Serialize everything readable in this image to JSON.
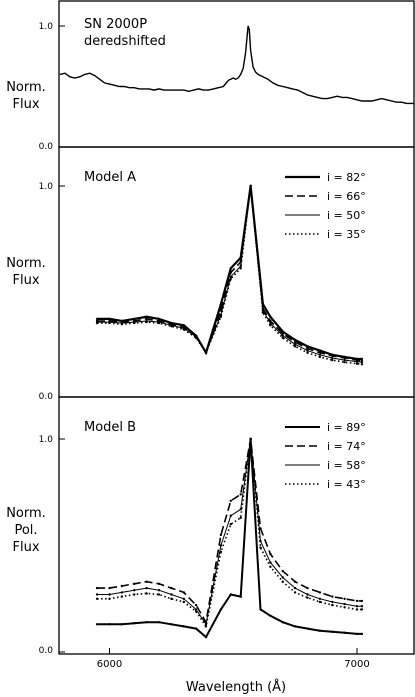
{
  "chart_data": [
    {
      "type": "line",
      "title": "",
      "annotation_lines": [
        "SN 2000P",
        "deredshifted"
      ],
      "xlabel": "",
      "ylabel_lines": [
        "Norm.",
        "Flux"
      ],
      "xlim": [
        5800,
        7230
      ],
      "ylim": [
        0.0,
        1.15
      ],
      "yticks": [
        {
          "value": 0.0,
          "label": "0.0"
        },
        {
          "value": 1.0,
          "label": "1.0"
        }
      ],
      "grid": false,
      "legend": null,
      "series": [
        {
          "style": "solid-thin",
          "x": [
            5800,
            5820,
            5840,
            5860,
            5880,
            5900,
            5920,
            5940,
            5960,
            5980,
            6000,
            6020,
            6040,
            6060,
            6080,
            6100,
            6120,
            6140,
            6160,
            6180,
            6200,
            6220,
            6240,
            6260,
            6280,
            6300,
            6320,
            6340,
            6360,
            6380,
            6400,
            6420,
            6440,
            6460,
            6480,
            6500,
            6510,
            6520,
            6530,
            6540,
            6550,
            6560,
            6565,
            6570,
            6580,
            6590,
            6600,
            6620,
            6640,
            6660,
            6680,
            6700,
            6720,
            6740,
            6760,
            6780,
            6800,
            6820,
            6840,
            6860,
            6880,
            6900,
            6920,
            6940,
            6960,
            6980,
            7000,
            7020,
            7040,
            7060,
            7080,
            7100,
            7120,
            7140,
            7160,
            7180,
            7200,
            7230
          ],
          "y": [
            0.6,
            0.61,
            0.58,
            0.57,
            0.58,
            0.6,
            0.61,
            0.59,
            0.56,
            0.53,
            0.52,
            0.51,
            0.5,
            0.5,
            0.49,
            0.49,
            0.48,
            0.48,
            0.48,
            0.47,
            0.48,
            0.47,
            0.47,
            0.47,
            0.47,
            0.47,
            0.46,
            0.47,
            0.48,
            0.47,
            0.47,
            0.48,
            0.49,
            0.5,
            0.55,
            0.57,
            0.56,
            0.57,
            0.6,
            0.65,
            0.78,
            1.0,
            0.97,
            0.8,
            0.66,
            0.62,
            0.6,
            0.58,
            0.56,
            0.53,
            0.51,
            0.5,
            0.49,
            0.48,
            0.47,
            0.45,
            0.43,
            0.42,
            0.41,
            0.4,
            0.4,
            0.41,
            0.42,
            0.41,
            0.41,
            0.4,
            0.39,
            0.38,
            0.38,
            0.38,
            0.39,
            0.4,
            0.39,
            0.38,
            0.37,
            0.37,
            0.36,
            0.36
          ]
        }
      ]
    },
    {
      "type": "line",
      "title": "",
      "annotation_lines": [
        "Model A"
      ],
      "xlabel": "",
      "ylabel_lines": [
        "Norm.",
        "Flux"
      ],
      "xlim": [
        5800,
        7230
      ],
      "ylim": [
        0.0,
        1.12
      ],
      "yticks": [
        {
          "value": 0.0,
          "label": "0.0"
        },
        {
          "value": 1.0,
          "label": "1.0"
        }
      ],
      "grid": false,
      "legend": "top-right",
      "series": [
        {
          "name": "i = 82°",
          "style": "solid-thick",
          "x": [
            5950,
            6000,
            6050,
            6100,
            6150,
            6200,
            6250,
            6300,
            6350,
            6390,
            6450,
            6490,
            6530,
            6570,
            6620,
            6650,
            6700,
            6750,
            6800,
            6850,
            6900,
            6950,
            7000,
            7020
          ],
          "y": [
            0.37,
            0.37,
            0.36,
            0.37,
            0.38,
            0.37,
            0.35,
            0.34,
            0.29,
            0.21,
            0.44,
            0.61,
            0.66,
            1.0,
            0.44,
            0.38,
            0.31,
            0.27,
            0.24,
            0.22,
            0.2,
            0.19,
            0.18,
            0.18
          ]
        },
        {
          "name": "i = 66°",
          "style": "dashed",
          "x": [
            5950,
            6000,
            6050,
            6100,
            6150,
            6200,
            6250,
            6300,
            6350,
            6390,
            6450,
            6490,
            6530,
            6570,
            6620,
            6650,
            6700,
            6750,
            6800,
            6850,
            6900,
            6950,
            7000,
            7020
          ],
          "y": [
            0.36,
            0.36,
            0.355,
            0.36,
            0.37,
            0.36,
            0.345,
            0.33,
            0.29,
            0.21,
            0.41,
            0.59,
            0.64,
            1.0,
            0.42,
            0.36,
            0.3,
            0.26,
            0.23,
            0.21,
            0.195,
            0.185,
            0.175,
            0.17
          ]
        },
        {
          "name": "i = 50°",
          "style": "solid-thin",
          "x": [
            5950,
            6000,
            6050,
            6100,
            6150,
            6200,
            6250,
            6300,
            6350,
            6390,
            6450,
            6490,
            6530,
            6570,
            6620,
            6650,
            6700,
            6750,
            6800,
            6850,
            6900,
            6950,
            7000,
            7020
          ],
          "y": [
            0.355,
            0.355,
            0.35,
            0.355,
            0.36,
            0.355,
            0.34,
            0.325,
            0.285,
            0.21,
            0.39,
            0.57,
            0.62,
            1.0,
            0.41,
            0.35,
            0.29,
            0.25,
            0.22,
            0.2,
            0.185,
            0.175,
            0.168,
            0.165
          ]
        },
        {
          "name": "i = 35°",
          "style": "dotted",
          "x": [
            5950,
            6000,
            6050,
            6100,
            6150,
            6200,
            6250,
            6300,
            6350,
            6390,
            6450,
            6490,
            6530,
            6570,
            6620,
            6650,
            6700,
            6750,
            6800,
            6850,
            6900,
            6950,
            7000,
            7020
          ],
          "y": [
            0.35,
            0.35,
            0.345,
            0.35,
            0.355,
            0.35,
            0.335,
            0.32,
            0.28,
            0.21,
            0.38,
            0.56,
            0.61,
            1.0,
            0.4,
            0.34,
            0.28,
            0.24,
            0.21,
            0.19,
            0.175,
            0.165,
            0.158,
            0.155
          ]
        }
      ]
    },
    {
      "type": "line",
      "title": "",
      "annotation_lines": [
        "Model B"
      ],
      "xlabel": "Wavelength (Å)",
      "ylabel_lines": [
        "Norm.",
        "Pol.",
        "Flux"
      ],
      "xlim": [
        5800,
        7230
      ],
      "xticks": [
        {
          "value": 6000,
          "label": "6000"
        },
        {
          "value": 7000,
          "label": "7000"
        }
      ],
      "ylim": [
        0.0,
        1.12
      ],
      "yticks": [
        {
          "value": 0.0,
          "label": "0.0"
        },
        {
          "value": 1.0,
          "label": "1.0"
        }
      ],
      "grid": false,
      "legend": "top-right",
      "series": [
        {
          "name": "i = 89°",
          "style": "solid-thick",
          "x": [
            5950,
            6000,
            6050,
            6100,
            6150,
            6200,
            6250,
            6300,
            6350,
            6390,
            6450,
            6490,
            6530,
            6570,
            6610,
            6650,
            6700,
            6750,
            6800,
            6850,
            6900,
            6950,
            7000,
            7020
          ],
          "y": [
            0.13,
            0.13,
            0.13,
            0.135,
            0.14,
            0.14,
            0.13,
            0.12,
            0.11,
            0.07,
            0.2,
            0.27,
            0.26,
            1.0,
            0.2,
            0.17,
            0.14,
            0.12,
            0.11,
            0.1,
            0.095,
            0.09,
            0.085,
            0.085
          ]
        },
        {
          "name": "i = 74°",
          "style": "dashed",
          "x": [
            5950,
            6000,
            6050,
            6100,
            6150,
            6200,
            6250,
            6300,
            6350,
            6390,
            6450,
            6490,
            6530,
            6570,
            6610,
            6650,
            6700,
            6750,
            6800,
            6850,
            6900,
            6950,
            7000,
            7020
          ],
          "y": [
            0.3,
            0.3,
            0.31,
            0.32,
            0.33,
            0.32,
            0.3,
            0.28,
            0.22,
            0.14,
            0.55,
            0.71,
            0.74,
            1.0,
            0.58,
            0.46,
            0.38,
            0.33,
            0.3,
            0.28,
            0.26,
            0.25,
            0.24,
            0.24
          ]
        },
        {
          "name": "i = 58°",
          "style": "solid-thin",
          "x": [
            5950,
            6000,
            6050,
            6100,
            6150,
            6200,
            6250,
            6300,
            6350,
            6390,
            6450,
            6490,
            6530,
            6570,
            6610,
            6650,
            6700,
            6750,
            6800,
            6850,
            6900,
            6950,
            7000,
            7020
          ],
          "y": [
            0.27,
            0.27,
            0.28,
            0.29,
            0.3,
            0.29,
            0.27,
            0.25,
            0.2,
            0.13,
            0.5,
            0.64,
            0.67,
            1.0,
            0.52,
            0.42,
            0.35,
            0.3,
            0.27,
            0.25,
            0.235,
            0.225,
            0.215,
            0.215
          ]
        },
        {
          "name": "i = 43°",
          "style": "dotted",
          "x": [
            5950,
            6000,
            6050,
            6100,
            6150,
            6200,
            6250,
            6300,
            6350,
            6390,
            6450,
            6490,
            6530,
            6570,
            6610,
            6650,
            6700,
            6750,
            6800,
            6850,
            6900,
            6950,
            7000,
            7020
          ],
          "y": [
            0.25,
            0.25,
            0.26,
            0.27,
            0.275,
            0.27,
            0.25,
            0.235,
            0.19,
            0.12,
            0.47,
            0.6,
            0.63,
            1.0,
            0.49,
            0.4,
            0.33,
            0.28,
            0.255,
            0.235,
            0.22,
            0.21,
            0.2,
            0.2
          ]
        }
      ]
    }
  ]
}
